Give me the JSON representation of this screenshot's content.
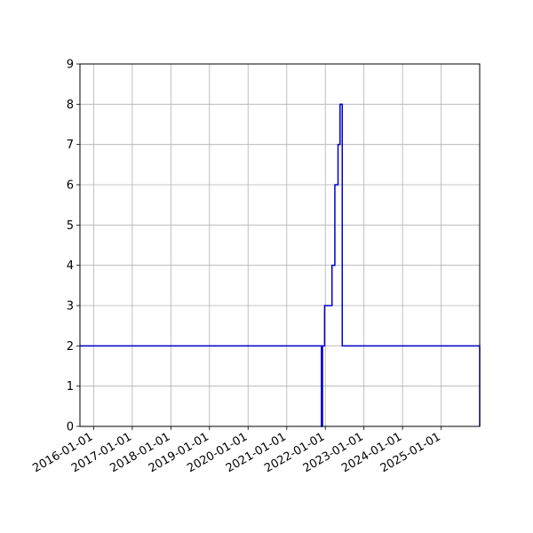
{
  "chart_data": {
    "type": "line",
    "title": "",
    "xlabel": "",
    "ylabel": "",
    "xlim": [
      "2015-08-25",
      "2025-12-31"
    ],
    "ylim": [
      0,
      9
    ],
    "grid": true,
    "legend": "none",
    "x_ticks": [
      "2016-01-01",
      "2017-01-01",
      "2018-01-01",
      "2019-01-01",
      "2020-01-01",
      "2021-01-01",
      "2022-01-01",
      "2023-01-01",
      "2024-01-01",
      "2025-01-01"
    ],
    "y_ticks": [
      "0",
      "1",
      "2",
      "3",
      "4",
      "5",
      "6",
      "7",
      "8",
      "9"
    ],
    "series": [
      {
        "color": "#0000cc",
        "step": "post",
        "x": [
          "2015-08-25",
          "2021-11-25",
          "2021-12-05",
          "2021-12-25",
          "2022-03-05",
          "2022-04-01",
          "2022-05-01",
          "2022-05-20",
          "2022-06-10",
          "2025-12-31",
          "2025-12-31"
        ],
        "y": [
          2,
          0,
          2,
          3,
          4,
          6,
          7,
          8,
          2,
          2,
          0
        ]
      }
    ]
  }
}
